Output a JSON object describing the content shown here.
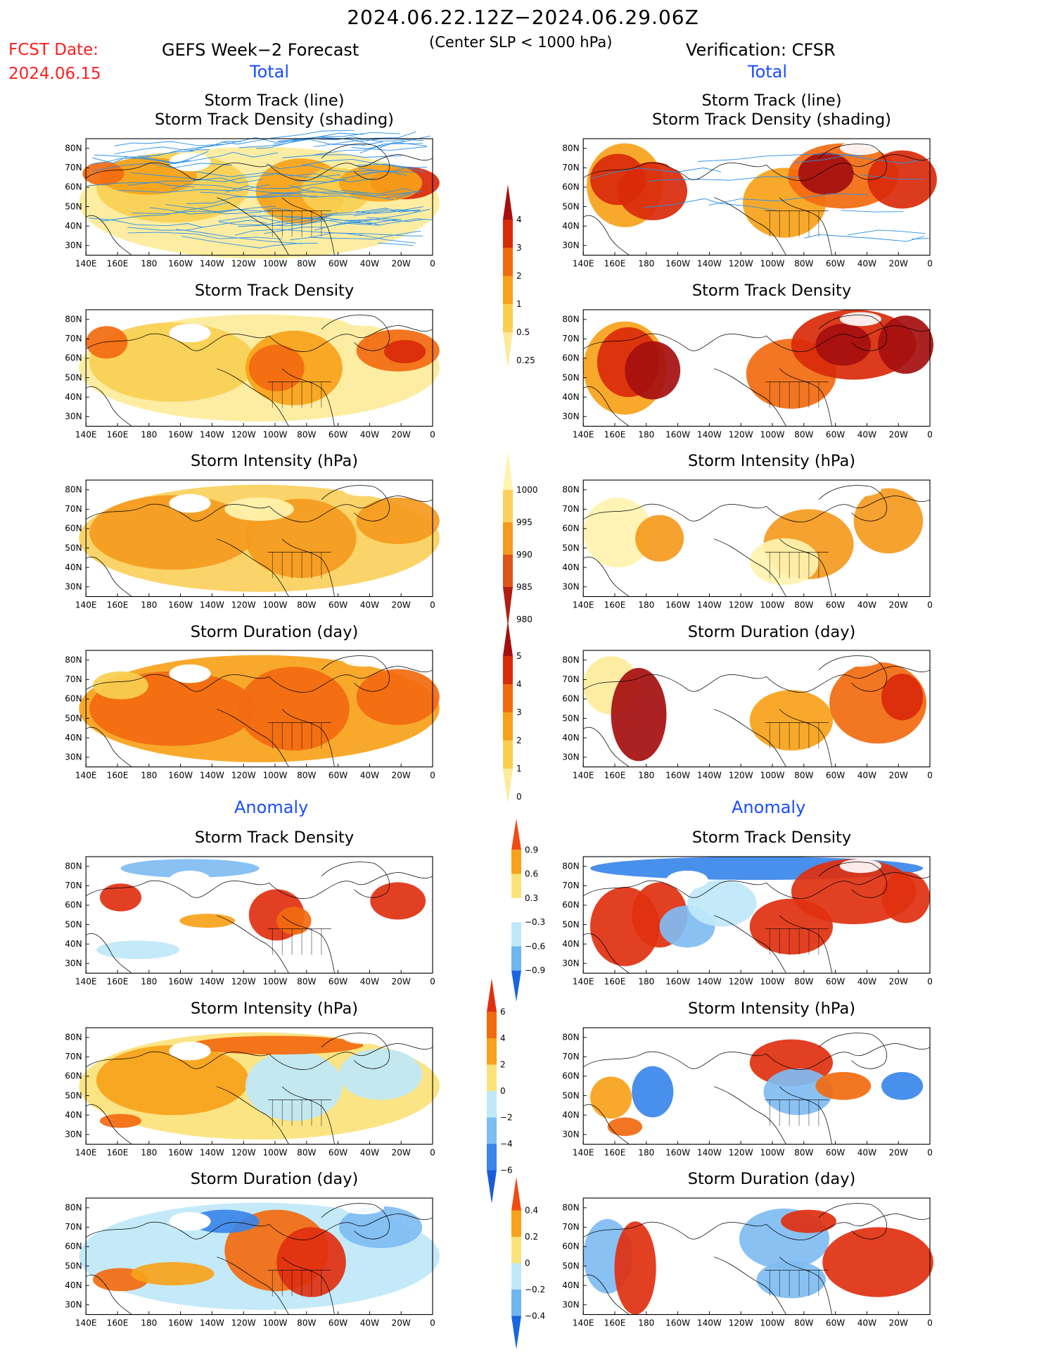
{
  "header": {
    "date_range": "2024.06.22.12Z−2024.06.29.06Z",
    "subtitle": "(Center SLP < 1000 hPa)",
    "fcst_label": "FCST Date:",
    "fcst_value": "2024.06.15",
    "left_title": "GEFS Week−2 Forecast",
    "right_title": "Verification: CFSR"
  },
  "sections": {
    "total": "Total",
    "anomaly": "Anomaly"
  },
  "titles": {
    "track_line": "Storm Track (line)",
    "track_shading": "Storm Track Density (shading)",
    "density": "Storm Track Density",
    "intensity": "Storm Intensity (hPa)",
    "duration": "Storm Duration (day)"
  },
  "axes": {
    "lat_labels": [
      "80N",
      "70N",
      "60N",
      "50N",
      "40N",
      "30N"
    ],
    "lon_labels": [
      "140E",
      "160E",
      "180",
      "160W",
      "140W",
      "120W",
      "100W",
      "80W",
      "60W",
      "40W",
      "20W",
      "0"
    ]
  },
  "colorbars": {
    "density_total": {
      "labels": [
        "4",
        "3",
        "2",
        "1",
        "0.5",
        "0.25"
      ],
      "colors": [
        "#a50f0f",
        "#d92a0a",
        "#f26a10",
        "#f7a21a",
        "#f9cf52",
        "#fdeb9b"
      ]
    },
    "intensity_total": {
      "labels": [
        "1000",
        "995",
        "990",
        "985",
        "980"
      ],
      "colors": [
        "#fff3b0",
        "#fbd05c",
        "#f49a1e",
        "#e0531a",
        "#b01e12"
      ]
    },
    "duration_total": {
      "labels": [
        "5",
        "4",
        "3",
        "2",
        "1",
        "0"
      ],
      "colors": [
        "#a50f0f",
        "#d92a0a",
        "#f26a10",
        "#f7a21a",
        "#f9cf52",
        "#fdeb9b"
      ]
    },
    "density_anom": {
      "labels": [
        "0.9",
        "0.6",
        "0.3",
        "−0.3",
        "−0.6",
        "−0.9"
      ],
      "colors": [
        "#f24a10",
        "#f7a21a",
        "#fbe27a",
        "#ffffff",
        "#bfe8f8",
        "#6fb6f0",
        "#1a64e0"
      ]
    },
    "intensity_anom": {
      "labels": [
        "6",
        "4",
        "2",
        "0",
        "−2",
        "−4",
        "−6"
      ],
      "colors": [
        "#e03010",
        "#f26a10",
        "#f7a21a",
        "#fbe27a",
        "#bfe8f8",
        "#7fbcf2",
        "#3a86ea",
        "#1a5cd8"
      ]
    },
    "duration_anom": {
      "labels": [
        "0.4",
        "0.2",
        "0",
        "−0.2",
        "−0.4"
      ],
      "colors": [
        "#f24a10",
        "#f7a21a",
        "#fbe27a",
        "#bfe8f8",
        "#6fb6f0",
        "#1a64e0"
      ]
    }
  },
  "colors": {
    "forecast_label": "#ff2020",
    "section_label": "#1a4cff",
    "track_line": "#2a90e8"
  }
}
